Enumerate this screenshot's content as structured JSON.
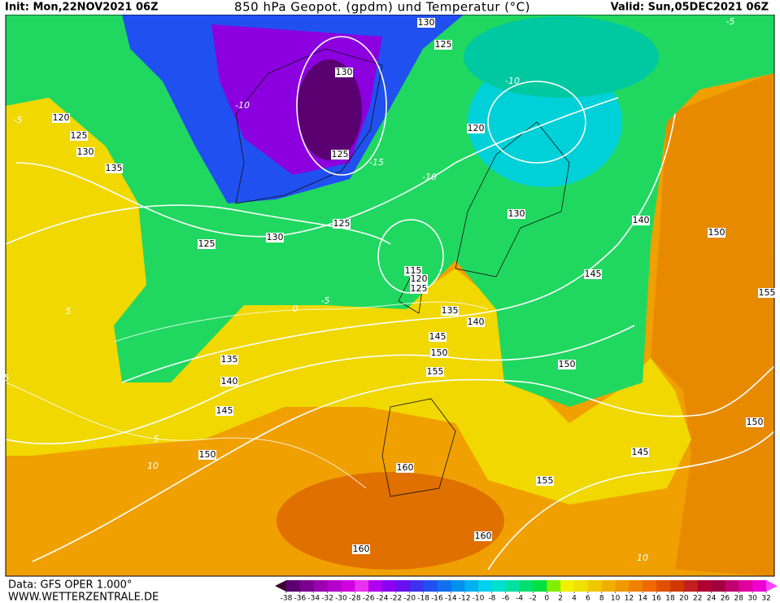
{
  "header": {
    "init": "Init: Mon,22NOV2021 06Z",
    "title": "850 hPa Geopot. (gpdm) und Temperatur (°C)",
    "valid": "Valid: Sun,05DEC2021 06Z"
  },
  "footer": {
    "data": "Data: GFS OPER 1.000°",
    "site": "WWW.WETTERZENTRALE.DE"
  },
  "contour_labels": {
    "geopotential": [
      "130",
      "125",
      "130",
      "120",
      "125",
      "130",
      "135",
      "120",
      "125",
      "125",
      "130",
      "140",
      "150",
      "125",
      "130",
      "115",
      "120",
      "125",
      "135",
      "140",
      "145",
      "145",
      "155",
      "150",
      "155",
      "150",
      "135",
      "140",
      "145",
      "150",
      "150",
      "145",
      "160",
      "155",
      "160",
      "160"
    ],
    "temperature": [
      "-10",
      "-15",
      "-10",
      "-5",
      "-10",
      "0",
      "-5",
      "5",
      "5",
      "5",
      "10",
      "10",
      "-5"
    ]
  },
  "colorbar": {
    "ticks": [
      -38,
      -36,
      -34,
      -32,
      -30,
      -28,
      -26,
      -24,
      -22,
      -20,
      -18,
      -16,
      -14,
      -12,
      -10,
      -8,
      -6,
      -4,
      -2,
      0,
      2,
      4,
      6,
      8,
      10,
      12,
      14,
      16,
      18,
      20,
      22,
      24,
      26,
      28,
      30,
      32
    ],
    "colors": [
      "#3d0033",
      "#5a0070",
      "#7a0090",
      "#9a00b0",
      "#b400c8",
      "#d000e0",
      "#e830f0",
      "#b000f0",
      "#8c00f0",
      "#6a10f0",
      "#4030f0",
      "#2050f0",
      "#1070f0",
      "#0090f0",
      "#00b0f0",
      "#00d0f0",
      "#00e0d0",
      "#00e0a0",
      "#00e070",
      "#00e040",
      "#80f000",
      "#f0f000",
      "#f0e000",
      "#f0c800",
      "#f0b000",
      "#f09800",
      "#f08000",
      "#f06800",
      "#e05000",
      "#d03800",
      "#c02020",
      "#b00030",
      "#a00040",
      "#c00070",
      "#e000a0",
      "#f000d0",
      "#ff40ff"
    ]
  }
}
